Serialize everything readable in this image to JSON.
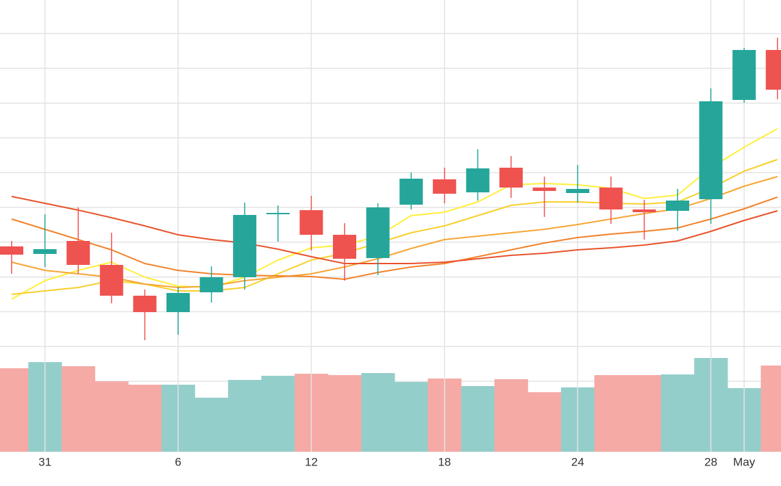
{
  "chart_data": {
    "type": "candlestick",
    "categories": [
      null,
      "31",
      null,
      null,
      null,
      "6",
      null,
      null,
      null,
      "12",
      null,
      null,
      null,
      "18",
      null,
      null,
      null,
      "24",
      null,
      null,
      null,
      "28",
      "May",
      null
    ],
    "open": [
      150,
      139,
      158,
      123,
      78,
      54,
      83,
      105,
      197,
      203,
      167,
      133,
      211,
      248,
      229,
      265,
      236,
      228,
      236,
      204,
      202,
      219,
      364,
      437
    ],
    "high": [
      158,
      197,
      207,
      170,
      87,
      91,
      121,
      214,
      210,
      224,
      184,
      213,
      258,
      265,
      292,
      282,
      252,
      269,
      252,
      218,
      234,
      381,
      440,
      455
    ],
    "low": [
      110,
      120,
      110,
      67,
      13,
      21,
      68,
      87,
      157,
      144,
      100,
      108,
      204,
      213,
      217,
      221,
      193,
      214,
      183,
      160,
      173,
      183,
      360,
      365
    ],
    "close": [
      138,
      146,
      123,
      78,
      54,
      82,
      105,
      196,
      199,
      167,
      132,
      207,
      249,
      227,
      264,
      236,
      231,
      234,
      204,
      200,
      217,
      362,
      437,
      379
    ],
    "up_color": "#26a69a",
    "down_color": "#ef5350",
    "volume": {
      "values": [
        122,
        131,
        125,
        103,
        98,
        98,
        79,
        105,
        111,
        114,
        112,
        115,
        102,
        107,
        96,
        106,
        87,
        94,
        112,
        112,
        113,
        137,
        93,
        126
      ],
      "up_color": "#94cecb",
      "down_color": "#f5aaa6"
    },
    "moving_averages": [
      {
        "color": "#ffef3a",
        "values": [
          73,
          100,
          115,
          127,
          105,
          92,
          90,
          105,
          130,
          148,
          152,
          165,
          195,
          200,
          215,
          240,
          242,
          240,
          235,
          220,
          225,
          265,
          295,
          322
        ]
      },
      {
        "color": "#f7cf2a",
        "values": [
          80,
          85,
          90,
          100,
          95,
          85,
          85,
          90,
          110,
          130,
          140,
          155,
          170,
          180,
          195,
          210,
          215,
          215,
          213,
          212,
          215,
          235,
          260,
          277
        ]
      },
      {
        "color": "#f6a532",
        "values": [
          127,
          115,
          110,
          105,
          95,
          90,
          92,
          100,
          105,
          110,
          120,
          132,
          147,
          160,
          165,
          170,
          175,
          182,
          190,
          198,
          205,
          220,
          238,
          252
        ]
      },
      {
        "color": "#f2822a",
        "values": [
          190,
          175,
          160,
          145,
          125,
          115,
          110,
          108,
          107,
          106,
          102,
          112,
          120,
          125,
          135,
          145,
          155,
          163,
          168,
          172,
          177,
          190,
          205,
          222
        ]
      },
      {
        "color": "#e8522a",
        "values": [
          223,
          213,
          203,
          192,
          180,
          167,
          160,
          155,
          146,
          135,
          125,
          125,
          125,
          127,
          132,
          137,
          140,
          145,
          148,
          152,
          158,
          172,
          188,
          202
        ]
      }
    ],
    "ylim": [
      0,
      510
    ],
    "y2lim": [
      0,
      160
    ],
    "grid": true
  }
}
